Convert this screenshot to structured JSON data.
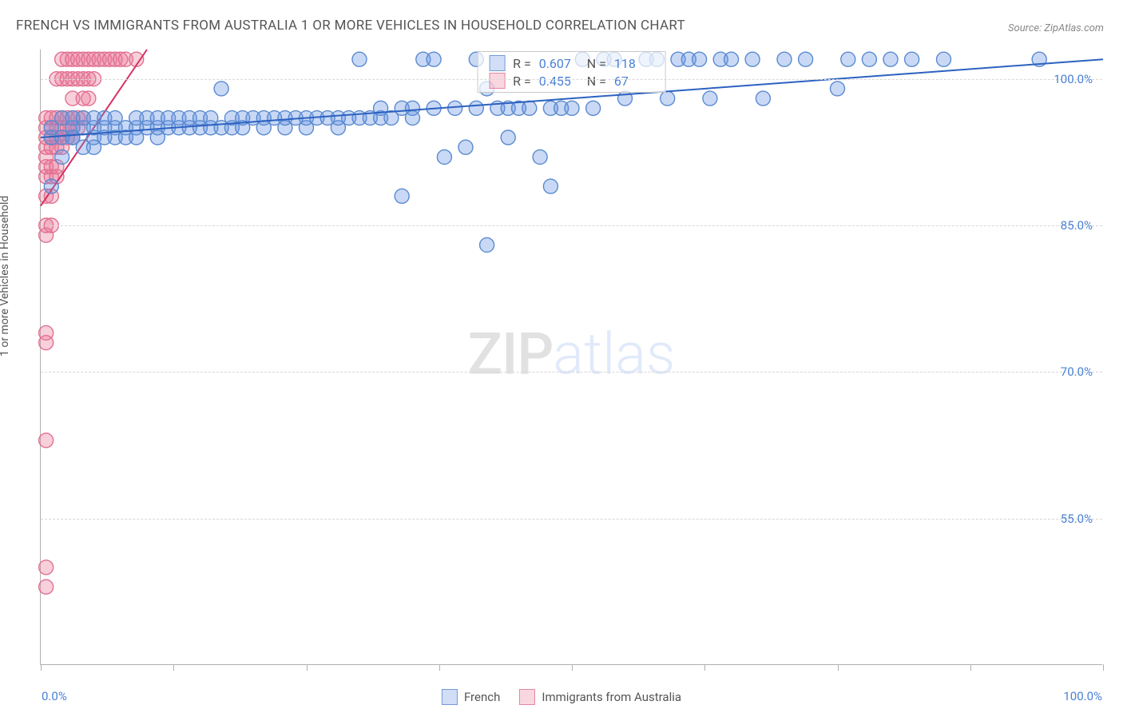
{
  "title": "FRENCH VS IMMIGRANTS FROM AUSTRALIA 1 OR MORE VEHICLES IN HOUSEHOLD CORRELATION CHART",
  "source": "Source: ZipAtlas.com",
  "y_axis_title": "1 or more Vehicles in Household",
  "watermark": {
    "zip": "ZIP",
    "atlas": "atlas"
  },
  "chart": {
    "type": "scatter",
    "background_color": "#ffffff",
    "grid_color": "#d8d8d8",
    "axis_color": "#b0b0b0",
    "label_color": "#4a80d6",
    "text_color": "#555555",
    "xlim": [
      0,
      100
    ],
    "ylim": [
      40,
      103
    ],
    "y_gridlines": [
      55.0,
      70.0,
      85.0,
      100.0
    ],
    "y_tick_labels": [
      "55.0%",
      "70.0%",
      "85.0%",
      "100.0%"
    ],
    "x_tick_positions": [
      0,
      12.5,
      25,
      37.5,
      50,
      62.5,
      75,
      87.5,
      100
    ],
    "x_label_0": "0.0%",
    "x_label_100": "100.0%",
    "marker_radius": 9,
    "marker_stroke_width": 1.4,
    "line_width": 2
  },
  "series": {
    "french": {
      "label": "French",
      "color_fill": "rgba(99,147,227,0.35)",
      "color_stroke": "#5a8ad0",
      "trend_color": "#2c62c0",
      "R": "0.607",
      "N": "118",
      "trend": {
        "x1": 0,
        "y1": 94,
        "x2": 100,
        "y2": 102
      },
      "points": [
        [
          1,
          89
        ],
        [
          1,
          94
        ],
        [
          1,
          95
        ],
        [
          2,
          92
        ],
        [
          2,
          94
        ],
        [
          2,
          96
        ],
        [
          3,
          94
        ],
        [
          3,
          95
        ],
        [
          3,
          94
        ],
        [
          3,
          96
        ],
        [
          4,
          93
        ],
        [
          4,
          95
        ],
        [
          4,
          96
        ],
        [
          5,
          94
        ],
        [
          5,
          95
        ],
        [
          5,
          96
        ],
        [
          5,
          93
        ],
        [
          6,
          94
        ],
        [
          6,
          95
        ],
        [
          6,
          96
        ],
        [
          7,
          94
        ],
        [
          7,
          95
        ],
        [
          7,
          96
        ],
        [
          8,
          94
        ],
        [
          8,
          95
        ],
        [
          9,
          94
        ],
        [
          9,
          95
        ],
        [
          9,
          96
        ],
        [
          10,
          95
        ],
        [
          10,
          96
        ],
        [
          11,
          94
        ],
        [
          11,
          95
        ],
        [
          11,
          96
        ],
        [
          12,
          95
        ],
        [
          12,
          96
        ],
        [
          13,
          95
        ],
        [
          13,
          96
        ],
        [
          14,
          95
        ],
        [
          14,
          96
        ],
        [
          15,
          95
        ],
        [
          15,
          96
        ],
        [
          16,
          95
        ],
        [
          16,
          96
        ],
        [
          17,
          95
        ],
        [
          17,
          99
        ],
        [
          18,
          95
        ],
        [
          18,
          96
        ],
        [
          19,
          95
        ],
        [
          19,
          96
        ],
        [
          20,
          96
        ],
        [
          21,
          95
        ],
        [
          21,
          96
        ],
        [
          22,
          96
        ],
        [
          23,
          95
        ],
        [
          23,
          96
        ],
        [
          24,
          96
        ],
        [
          25,
          95
        ],
        [
          25,
          96
        ],
        [
          26,
          96
        ],
        [
          27,
          96
        ],
        [
          28,
          95
        ],
        [
          28,
          96
        ],
        [
          29,
          96
        ],
        [
          30,
          102
        ],
        [
          30,
          96
        ],
        [
          31,
          96
        ],
        [
          32,
          96
        ],
        [
          32,
          97
        ],
        [
          33,
          96
        ],
        [
          34,
          97
        ],
        [
          34,
          88
        ],
        [
          35,
          97
        ],
        [
          35,
          96
        ],
        [
          36,
          102
        ],
        [
          37,
          97
        ],
        [
          37,
          102
        ],
        [
          38,
          92
        ],
        [
          39,
          97
        ],
        [
          40,
          93
        ],
        [
          41,
          97
        ],
        [
          41,
          102
        ],
        [
          42,
          99
        ],
        [
          42,
          83
        ],
        [
          43,
          97
        ],
        [
          44,
          97
        ],
        [
          44,
          94
        ],
        [
          45,
          97
        ],
        [
          46,
          97
        ],
        [
          47,
          92
        ],
        [
          48,
          97
        ],
        [
          49,
          97
        ],
        [
          50,
          97
        ],
        [
          51,
          102
        ],
        [
          52,
          97
        ],
        [
          53,
          102
        ],
        [
          54,
          102
        ],
        [
          55,
          98
        ],
        [
          57,
          102
        ],
        [
          58,
          102
        ],
        [
          59,
          98
        ],
        [
          60,
          102
        ],
        [
          61,
          102
        ],
        [
          62,
          102
        ],
        [
          63,
          98
        ],
        [
          64,
          102
        ],
        [
          65,
          102
        ],
        [
          67,
          102
        ],
        [
          68,
          98
        ],
        [
          70,
          102
        ],
        [
          72,
          102
        ],
        [
          75,
          99
        ],
        [
          76,
          102
        ],
        [
          78,
          102
        ],
        [
          80,
          102
        ],
        [
          82,
          102
        ],
        [
          85,
          102
        ],
        [
          94,
          102
        ],
        [
          48,
          89
        ]
      ]
    },
    "australia": {
      "label": "Immigrants from Australia",
      "color_fill": "rgba(236,120,155,0.35)",
      "color_stroke": "#e07090",
      "trend_color": "#d63060",
      "R": "0.455",
      "N": "67",
      "trend": {
        "x1": 0,
        "y1": 87,
        "x2": 10,
        "y2": 103
      },
      "points": [
        [
          0.5,
          48
        ],
        [
          0.5,
          50
        ],
        [
          0.5,
          63
        ],
        [
          0.5,
          73
        ],
        [
          0.5,
          74
        ],
        [
          0.5,
          84
        ],
        [
          0.5,
          85
        ],
        [
          0.5,
          88
        ],
        [
          0.5,
          90
        ],
        [
          0.5,
          91
        ],
        [
          0.5,
          92
        ],
        [
          0.5,
          93
        ],
        [
          0.5,
          94
        ],
        [
          0.5,
          95
        ],
        [
          0.5,
          96
        ],
        [
          1,
          85
        ],
        [
          1,
          88
        ],
        [
          1,
          90
        ],
        [
          1,
          91
        ],
        [
          1,
          93
        ],
        [
          1,
          94
        ],
        [
          1,
          95
        ],
        [
          1,
          96
        ],
        [
          1.5,
          90
        ],
        [
          1.5,
          91
        ],
        [
          1.5,
          93
        ],
        [
          1.5,
          94
        ],
        [
          1.5,
          95
        ],
        [
          1.5,
          96
        ],
        [
          1.5,
          100
        ],
        [
          2,
          93
        ],
        [
          2,
          94
        ],
        [
          2,
          95
        ],
        [
          2,
          96
        ],
        [
          2,
          100
        ],
        [
          2,
          102
        ],
        [
          2.5,
          94
        ],
        [
          2.5,
          95
        ],
        [
          2.5,
          96
        ],
        [
          2.5,
          100
        ],
        [
          2.5,
          102
        ],
        [
          3,
          94
        ],
        [
          3,
          95
        ],
        [
          3,
          96
        ],
        [
          3,
          98
        ],
        [
          3,
          100
        ],
        [
          3,
          102
        ],
        [
          3.5,
          95
        ],
        [
          3.5,
          96
        ],
        [
          3.5,
          100
        ],
        [
          3.5,
          102
        ],
        [
          4,
          96
        ],
        [
          4,
          98
        ],
        [
          4,
          100
        ],
        [
          4,
          102
        ],
        [
          4.5,
          98
        ],
        [
          4.5,
          100
        ],
        [
          4.5,
          102
        ],
        [
          5,
          100
        ],
        [
          5,
          102
        ],
        [
          5.5,
          102
        ],
        [
          6,
          102
        ],
        [
          6.5,
          102
        ],
        [
          7,
          102
        ],
        [
          7.5,
          102
        ],
        [
          8,
          102
        ],
        [
          9,
          102
        ]
      ]
    }
  },
  "stats_box": {
    "r_label": "R =",
    "n_label": "N ="
  }
}
